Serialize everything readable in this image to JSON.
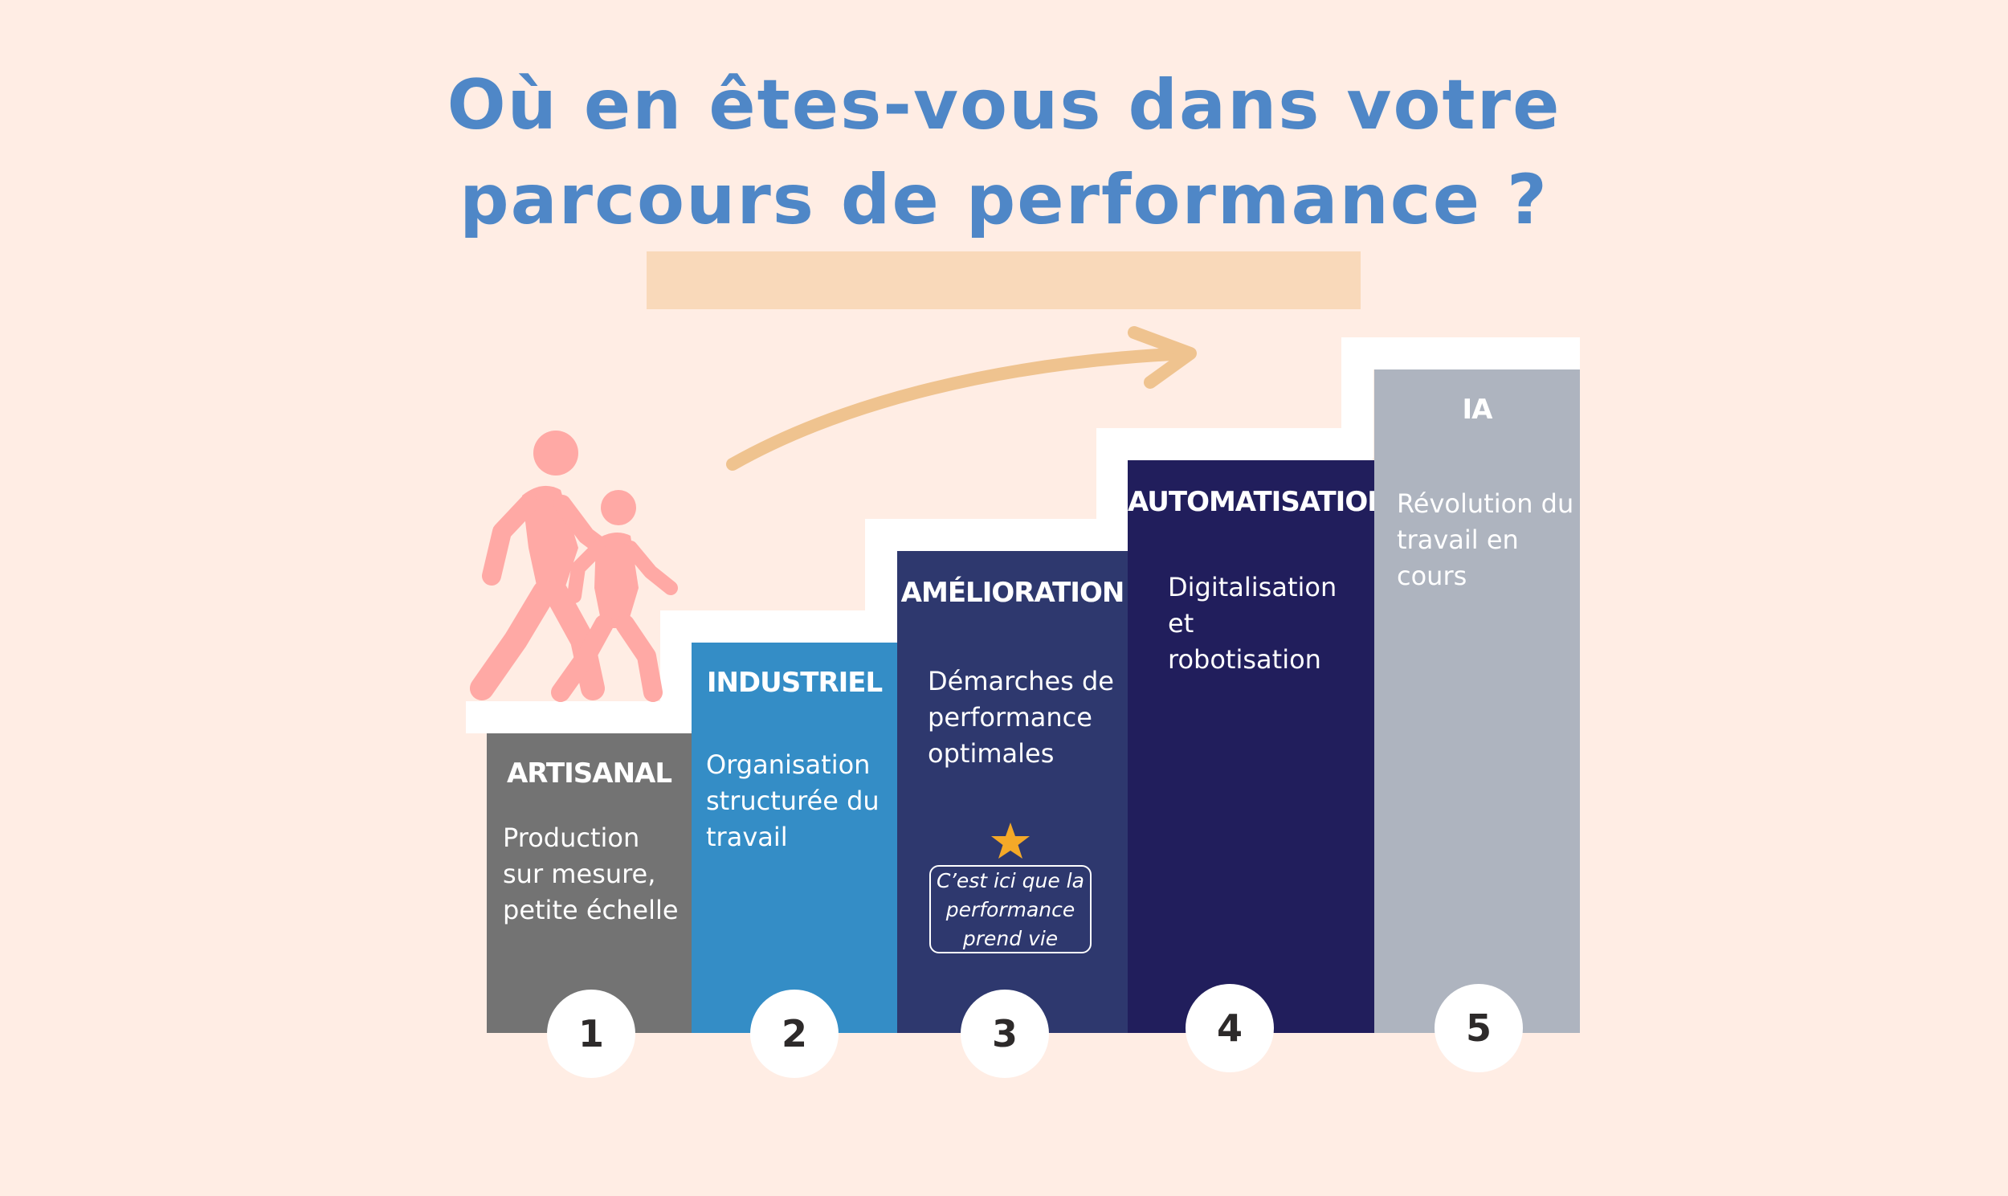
{
  "title": {
    "line1": "Où en êtes-vous dans votre",
    "line2": "parcours de performance ?"
  },
  "colors": {
    "background": "#ffede4",
    "title": "#4f87c7",
    "highlight": "#f9d9ba",
    "arrow": "#efc38f",
    "people": "#ffa9a5",
    "star": "#f4a928"
  },
  "steps": [
    {
      "number": "1",
      "title": "ARTISANAL",
      "description": [
        "Production",
        "sur mesure,",
        "petite échelle"
      ],
      "color": "#737373"
    },
    {
      "number": "2",
      "title": "INDUSTRIEL",
      "description": [
        "Organisation",
        "structurée du",
        "travail"
      ],
      "color": "#348dc6"
    },
    {
      "number": "3",
      "title": "AMÉLIORATION",
      "description": [
        "Démarches de",
        "performance",
        "optimales"
      ],
      "color": "#2e386e"
    },
    {
      "number": "4",
      "title": "AUTOMATISATION",
      "description": [
        "Digitalisation",
        "et",
        "robotisation"
      ],
      "color": "#211e5c"
    },
    {
      "number": "5",
      "title": "IA",
      "description": [
        "Révolution du",
        "travail en",
        "cours"
      ],
      "color": "#aeb4bf"
    }
  ],
  "callout": {
    "lines": [
      "C’est ici que la",
      "performance",
      "prend vie"
    ],
    "icon": "star-icon"
  },
  "icons": {
    "people": "walking-people-icon",
    "arrow": "curved-arrow-icon"
  }
}
